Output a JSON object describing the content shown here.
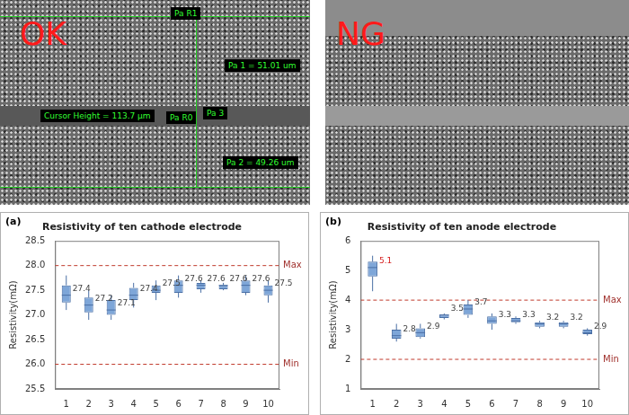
{
  "panels": [
    {
      "label": "OK",
      "annotations": [
        "Pa R1",
        "Pa 1 = 51.01 um",
        "Cursor Height = 113.7 µm",
        "Pa R0",
        "Pa 3",
        "Pa 2 = 49.26 um"
      ]
    },
    {
      "label": "NG",
      "annotations": []
    }
  ],
  "chart_data": [
    {
      "type": "box",
      "panel_label": "(a)",
      "title": "Resistivity of ten cathode electrode",
      "y_label": "Resistivity(mΩ)",
      "categories": [
        "1",
        "2",
        "3",
        "4",
        "5",
        "6",
        "7",
        "8",
        "9",
        "10"
      ],
      "values": [
        27.4,
        27.2,
        27.1,
        27.4,
        27.5,
        27.6,
        27.6,
        27.6,
        27.6,
        27.5
      ],
      "q1": [
        27.25,
        27.05,
        27.0,
        27.3,
        27.45,
        27.45,
        27.52,
        27.52,
        27.45,
        27.4
      ],
      "q3": [
        27.6,
        27.35,
        27.3,
        27.55,
        27.6,
        27.7,
        27.65,
        27.6,
        27.7,
        27.6
      ],
      "whisker_low": [
        27.1,
        26.9,
        26.9,
        27.15,
        27.3,
        27.35,
        27.45,
        27.5,
        27.4,
        27.25
      ],
      "whisker_high": [
        27.8,
        27.5,
        27.4,
        27.65,
        27.7,
        27.8,
        27.7,
        27.65,
        27.8,
        27.7
      ],
      "reference_lines": [
        {
          "value": 28,
          "label": "Max"
        },
        {
          "value": 26,
          "label": "Min"
        }
      ],
      "color": "#7ea6d8",
      "ylim": [
        25.5,
        28.5
      ],
      "yticks": [
        25.5,
        {
          "value": 26,
          "label": "26.0"
        },
        26.5,
        {
          "value": 27,
          "label": "27.0"
        },
        27.5,
        {
          "value": 28,
          "label": "28.0"
        },
        28.5
      ],
      "grid": false,
      "data_labels": true
    },
    {
      "type": "box",
      "panel_label": "(b)",
      "title": "Resistivity of ten anode electrode",
      "y_label": "Resistivity(mΩ)",
      "categories": [
        "1",
        "2",
        "3",
        "4",
        "5",
        "6",
        "7",
        "8",
        "9",
        "10"
      ],
      "values": [
        5.1,
        2.8,
        2.9,
        3.5,
        3.7,
        3.3,
        3.3,
        3.2,
        3.2,
        2.9
      ],
      "q1": [
        4.8,
        2.7,
        2.75,
        3.4,
        3.5,
        3.2,
        3.25,
        3.1,
        3.1,
        2.85
      ],
      "q3": [
        5.3,
        3.0,
        3.05,
        3.5,
        3.85,
        3.45,
        3.4,
        3.25,
        3.25,
        3.0
      ],
      "whisker_low": [
        4.3,
        2.6,
        2.7,
        3.35,
        3.4,
        3.0,
        3.2,
        3.05,
        3.05,
        2.8
      ],
      "whisker_high": [
        5.5,
        3.2,
        3.2,
        3.55,
        4.0,
        3.55,
        3.45,
        3.3,
        3.3,
        3.05
      ],
      "reference_lines": [
        {
          "value": 4,
          "label": "Max"
        },
        {
          "value": 2,
          "label": "Min"
        }
      ],
      "color": "#7ea6d8",
      "ylim": [
        1,
        6
      ],
      "yticks": [
        1,
        2,
        3,
        4,
        5,
        6
      ],
      "grid": false,
      "data_labels": true
    }
  ]
}
